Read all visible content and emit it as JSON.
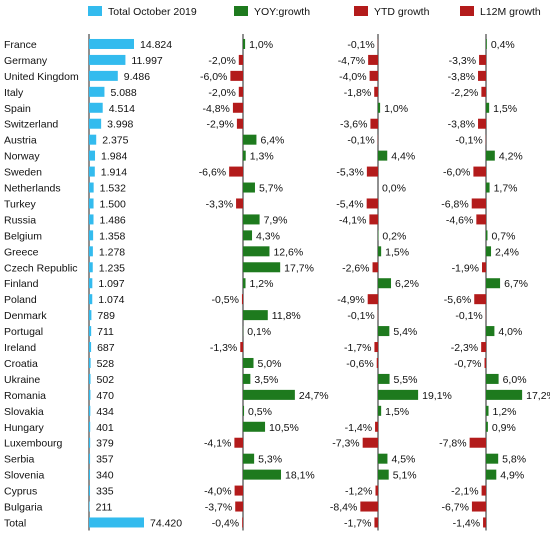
{
  "chart_data": {
    "type": "bar",
    "legend": [
      {
        "label": "Total  October 2019",
        "color": "#33bbee"
      },
      {
        "label": "YOY:growth",
        "color": "#1e7a1e"
      },
      {
        "label": "YTD growth",
        "color": "#b31b1b"
      },
      {
        "label": "L12M growth",
        "color": "#b31b1b"
      }
    ],
    "legend_position": "top",
    "total_color": "#33bbee",
    "positive_color": "#1e7a1e",
    "negative_color": "#b31b1b",
    "rows": [
      {
        "country": "France",
        "total": 14824,
        "total_label": "14.824",
        "yoy": 1.0,
        "ytd": -0.1,
        "l12m": 0.4
      },
      {
        "country": "Germany",
        "total": 11997,
        "total_label": "11.997",
        "yoy": -2.0,
        "ytd": -4.7,
        "l12m": -3.3
      },
      {
        "country": "United Kingdom",
        "total": 9486,
        "total_label": "9.486",
        "yoy": -6.0,
        "ytd": -4.0,
        "l12m": -3.8
      },
      {
        "country": "Italy",
        "total": 5088,
        "total_label": "5.088",
        "yoy": -2.0,
        "ytd": -1.8,
        "l12m": -2.2
      },
      {
        "country": "Spain",
        "total": 4514,
        "total_label": "4.514",
        "yoy": -4.8,
        "ytd": 1.0,
        "l12m": 1.5
      },
      {
        "country": "Switzerland",
        "total": 3998,
        "total_label": "3.998",
        "yoy": -2.9,
        "ytd": -3.6,
        "l12m": -3.8
      },
      {
        "country": "Austria",
        "total": 2375,
        "total_label": "2.375",
        "yoy": 6.4,
        "ytd": -0.1,
        "l12m": -0.1
      },
      {
        "country": "Norway",
        "total": 1984,
        "total_label": "1.984",
        "yoy": 1.3,
        "ytd": 4.4,
        "l12m": 4.2
      },
      {
        "country": "Sweden",
        "total": 1914,
        "total_label": "1.914",
        "yoy": -6.6,
        "ytd": -5.3,
        "l12m": -6.0
      },
      {
        "country": "Netherlands",
        "total": 1532,
        "total_label": "1.532",
        "yoy": 5.7,
        "ytd": 0.0,
        "l12m": 1.7
      },
      {
        "country": "Turkey",
        "total": 1500,
        "total_label": "1.500",
        "yoy": -3.3,
        "ytd": -5.4,
        "l12m": -6.8
      },
      {
        "country": "Russia",
        "total": 1486,
        "total_label": "1.486",
        "yoy": 7.9,
        "ytd": -4.1,
        "l12m": -4.6
      },
      {
        "country": "Belgium",
        "total": 1358,
        "total_label": "1.358",
        "yoy": 4.3,
        "ytd": 0.2,
        "l12m": 0.7
      },
      {
        "country": "Greece",
        "total": 1278,
        "total_label": "1.278",
        "yoy": 12.6,
        "ytd": 1.5,
        "l12m": 2.4
      },
      {
        "country": "Czech Republic",
        "total": 1235,
        "total_label": "1.235",
        "yoy": 17.7,
        "ytd": -2.6,
        "l12m": -1.9
      },
      {
        "country": "Finland",
        "total": 1097,
        "total_label": "1.097",
        "yoy": 1.2,
        "ytd": 6.2,
        "l12m": 6.7
      },
      {
        "country": "Poland",
        "total": 1074,
        "total_label": "1.074",
        "yoy": -0.5,
        "ytd": -4.9,
        "l12m": -5.6
      },
      {
        "country": "Denmark",
        "total": 789,
        "total_label": "789",
        "yoy": 11.8,
        "ytd": -0.1,
        "l12m": -0.1
      },
      {
        "country": "Portugal",
        "total": 711,
        "total_label": "711",
        "yoy": 0.1,
        "ytd": 5.4,
        "l12m": 4.0
      },
      {
        "country": "Ireland",
        "total": 687,
        "total_label": "687",
        "yoy": -1.3,
        "ytd": -1.7,
        "l12m": -2.3
      },
      {
        "country": "Croatia",
        "total": 528,
        "total_label": "528",
        "yoy": 5.0,
        "ytd": -0.6,
        "l12m": -0.7
      },
      {
        "country": "Ukraine",
        "total": 502,
        "total_label": "502",
        "yoy": 3.5,
        "ytd": 5.5,
        "l12m": 6.0
      },
      {
        "country": "Romania",
        "total": 470,
        "total_label": "470",
        "yoy": 24.7,
        "ytd": 19.1,
        "l12m": 17.2
      },
      {
        "country": "Slovakia",
        "total": 434,
        "total_label": "434",
        "yoy": 0.5,
        "ytd": 1.5,
        "l12m": 1.2
      },
      {
        "country": "Hungary",
        "total": 401,
        "total_label": "401",
        "yoy": 10.5,
        "ytd": -1.4,
        "l12m": 0.9
      },
      {
        "country": "Luxembourg",
        "total": 379,
        "total_label": "379",
        "yoy": -4.1,
        "ytd": -7.3,
        "l12m": -7.8
      },
      {
        "country": "Serbia",
        "total": 357,
        "total_label": "357",
        "yoy": 5.3,
        "ytd": 4.5,
        "l12m": 5.8
      },
      {
        "country": "Slovenia",
        "total": 340,
        "total_label": "340",
        "yoy": 18.1,
        "ytd": 5.1,
        "l12m": 4.9
      },
      {
        "country": "Cyprus",
        "total": 335,
        "total_label": "335",
        "yoy": -4.0,
        "ytd": -1.2,
        "l12m": -2.1
      },
      {
        "country": "Bulgaria",
        "total": 211,
        "total_label": "211",
        "yoy": -3.7,
        "ytd": -8.4,
        "l12m": -6.7
      },
      {
        "country": "Total",
        "total": 74420,
        "total_label": "74.420",
        "yoy": -0.4,
        "ytd": -1.7,
        "l12m": -1.4
      }
    ]
  }
}
